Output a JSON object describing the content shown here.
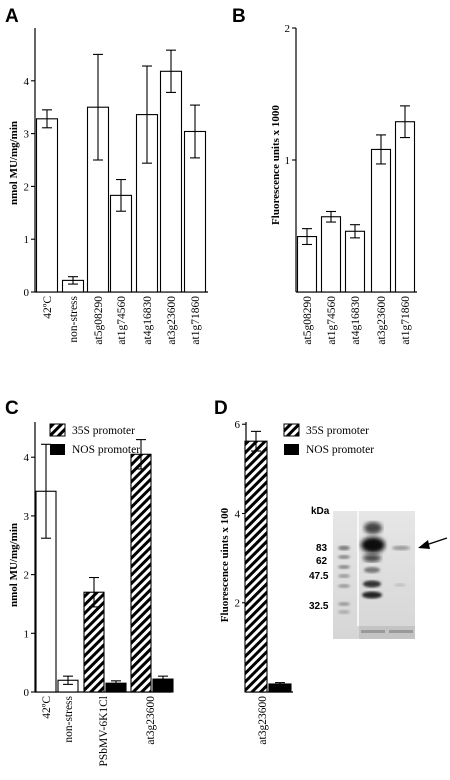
{
  "panels": [
    {
      "letter": "A",
      "chart_data": {
        "type": "bar",
        "ylabel": "nmol MU/mg/min",
        "ylim": [
          0,
          5
        ],
        "yticks": [
          0,
          1,
          2,
          3,
          4
        ],
        "categories": [
          "42ºC",
          "non-stress",
          "at5g08290",
          "at1g74560",
          "at4g16830",
          "at3g23600",
          "at1g71860"
        ],
        "values": [
          3.28,
          0.22,
          3.5,
          1.83,
          3.36,
          4.18,
          3.04
        ],
        "errors": [
          0.17,
          0.07,
          1.0,
          0.3,
          0.92,
          0.4,
          0.5
        ]
      }
    },
    {
      "letter": "B",
      "chart_data": {
        "type": "bar",
        "ylabel": "Fluorescence units x 1000",
        "ylim": [
          0,
          2
        ],
        "yticks": [
          1,
          2
        ],
        "categories": [
          "at5g08290",
          "at1g74560",
          "at4g16830",
          "at3g23600",
          "at1g71860"
        ],
        "values": [
          0.42,
          0.57,
          0.46,
          1.08,
          1.29
        ],
        "errors": [
          0.06,
          0.04,
          0.05,
          0.11,
          0.12
        ]
      }
    },
    {
      "letter": "C",
      "chart_data": {
        "type": "bar",
        "ylabel": "nmol MU/mg/min",
        "ylim": [
          0,
          4.6
        ],
        "yticks": [
          0,
          1,
          2,
          3,
          4
        ],
        "categories": [
          "42ºC",
          "non-stress",
          "PSbMV-6K1Cl",
          "at3g23600"
        ],
        "series": [
          {
            "name": "35S promoter",
            "values": [
              null,
              null,
              1.7,
              4.05
            ],
            "errors": [
              null,
              null,
              0.25,
              0.25
            ]
          },
          {
            "name": "NOS promoter",
            "values": [
              null,
              null,
              0.15,
              0.22
            ],
            "errors": [
              null,
              null,
              0.04,
              0.05
            ]
          }
        ],
        "controls": {
          "values": [
            3.42,
            0.2
          ],
          "errors": [
            0.8,
            0.07
          ]
        },
        "legend": "top-right"
      }
    },
    {
      "letter": "D",
      "chart_data": {
        "type": "bar",
        "ylabel": "Fluorescence uints x 100",
        "ylim": [
          0,
          6.05
        ],
        "yticks": [
          2,
          4,
          6
        ],
        "categories": [
          "at3g23600"
        ],
        "series": [
          {
            "name": "35S promoter",
            "values": [
              5.62
            ],
            "errors": [
              0.22
            ]
          },
          {
            "name": "NOS promoter",
            "values": [
              0.18
            ],
            "errors": [
              0.03
            ]
          }
        ],
        "legend": "top-right"
      },
      "blot": {
        "kda_label": "kDa",
        "markers": [
          "83",
          "62",
          "47.5",
          "32.5"
        ],
        "lanes": [
          "1",
          "2"
        ]
      }
    }
  ]
}
